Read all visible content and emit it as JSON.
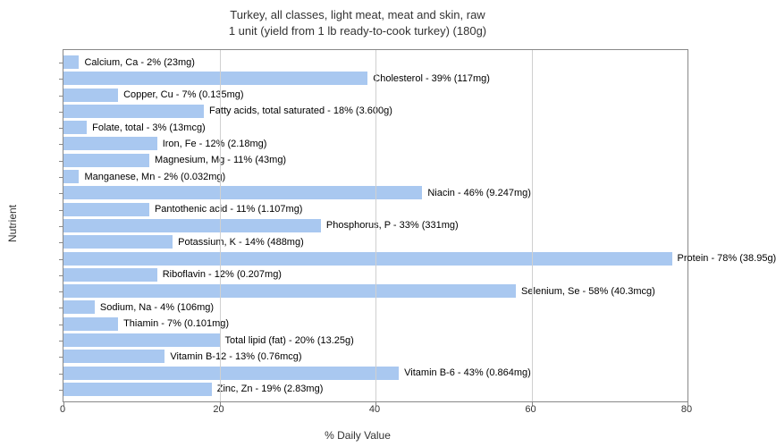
{
  "chart": {
    "type": "bar-horizontal",
    "title_line1": "Turkey, all classes, light meat, meat and skin, raw",
    "title_line2": "1 unit (yield from 1 lb ready-to-cook turkey) (180g)",
    "x_axis_label": "% Daily Value",
    "y_axis_label": "Nutrient",
    "xlim": [
      0,
      80
    ],
    "xtick_step": 20,
    "xticks": [
      0,
      20,
      40,
      60,
      80
    ],
    "bar_color": "#a9c8f0",
    "background_color": "#ffffff",
    "grid_color": "#d0d0d0",
    "border_color": "#888888",
    "label_fontsize": 11,
    "title_fontsize": 13,
    "nutrients": [
      {
        "label": "Calcium, Ca - 2% (23mg)",
        "value": 2
      },
      {
        "label": "Cholesterol - 39% (117mg)",
        "value": 39
      },
      {
        "label": "Copper, Cu - 7% (0.135mg)",
        "value": 7
      },
      {
        "label": "Fatty acids, total saturated - 18% (3.600g)",
        "value": 18
      },
      {
        "label": "Folate, total - 3% (13mcg)",
        "value": 3
      },
      {
        "label": "Iron, Fe - 12% (2.18mg)",
        "value": 12
      },
      {
        "label": "Magnesium, Mg - 11% (43mg)",
        "value": 11
      },
      {
        "label": "Manganese, Mn - 2% (0.032mg)",
        "value": 2
      },
      {
        "label": "Niacin - 46% (9.247mg)",
        "value": 46
      },
      {
        "label": "Pantothenic acid - 11% (1.107mg)",
        "value": 11
      },
      {
        "label": "Phosphorus, P - 33% (331mg)",
        "value": 33
      },
      {
        "label": "Potassium, K - 14% (488mg)",
        "value": 14
      },
      {
        "label": "Protein - 78% (38.95g)",
        "value": 78
      },
      {
        "label": "Riboflavin - 12% (0.207mg)",
        "value": 12
      },
      {
        "label": "Selenium, Se - 58% (40.3mcg)",
        "value": 58
      },
      {
        "label": "Sodium, Na - 4% (106mg)",
        "value": 4
      },
      {
        "label": "Thiamin - 7% (0.101mg)",
        "value": 7
      },
      {
        "label": "Total lipid (fat) - 20% (13.25g)",
        "value": 20
      },
      {
        "label": "Vitamin B-12 - 13% (0.76mcg)",
        "value": 13
      },
      {
        "label": "Vitamin B-6 - 43% (0.864mg)",
        "value": 43
      },
      {
        "label": "Zinc, Zn - 19% (2.83mg)",
        "value": 19
      }
    ]
  }
}
